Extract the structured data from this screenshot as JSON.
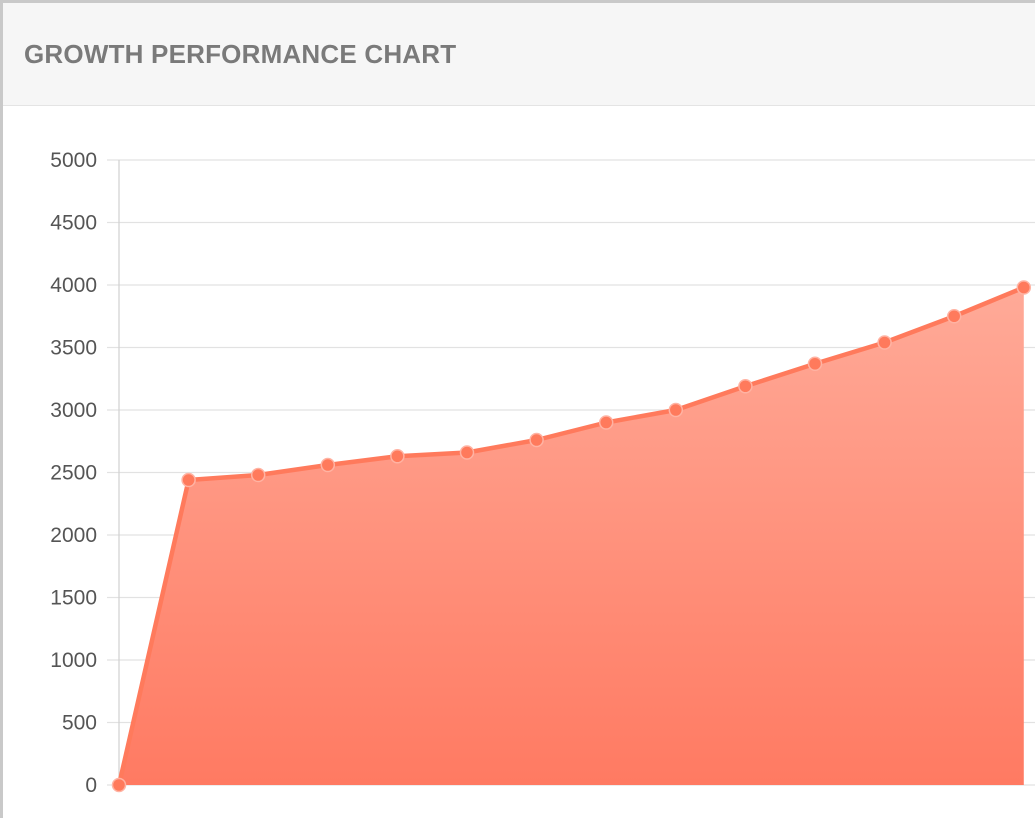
{
  "panel": {
    "title": "GROWTH PERFORMANCE CHART"
  },
  "colors": {
    "line": "#ff7a5c",
    "fill_top": "#ffaa98",
    "fill_bottom": "#ff7a62",
    "point": "#ff7a5c",
    "grid": "#e2e2e2",
    "axis": "#d0d0d0"
  },
  "chart_data": {
    "type": "area",
    "title": "GROWTH PERFORMANCE CHART",
    "xlabel": "",
    "ylabel": "",
    "ylim": [
      0,
      5000
    ],
    "yticks": [
      0,
      500,
      1000,
      1500,
      2000,
      2500,
      3000,
      3500,
      4000,
      4500,
      5000
    ],
    "grid": true,
    "legend": "none",
    "series": [
      {
        "values": [
          0,
          2440,
          2480,
          2560,
          2630,
          2660,
          2760,
          2900,
          3000,
          3190,
          3370,
          3540,
          3750,
          3980
        ]
      }
    ]
  }
}
